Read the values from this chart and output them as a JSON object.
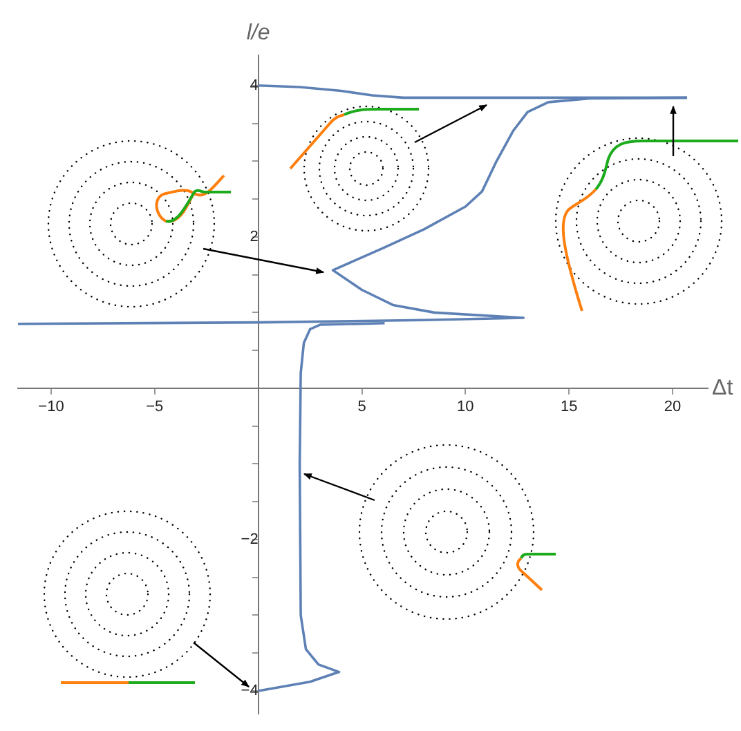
{
  "chart_data": {
    "type": "line",
    "xlabel": "Δt",
    "ylabel": "l/e",
    "xlim": [
      -11.6,
      21.7
    ],
    "ylim": [
      -4.3,
      4.4
    ],
    "xticks": [
      -10,
      -5,
      5,
      10,
      15,
      20
    ],
    "yticks": [
      -4,
      {
        "value": -3.5,
        "label": null
      },
      {
        "value": -3,
        "label": null
      },
      {
        "value": -2.5,
        "label": null
      },
      -2,
      {
        "value": -1.5,
        "label": null
      },
      {
        "value": -1,
        "label": null
      },
      {
        "value": -0.5,
        "label": null
      },
      {
        "value": 0.5,
        "label": null
      },
      {
        "value": 1,
        "label": null
      },
      {
        "value": 1.5,
        "label": null
      },
      2,
      {
        "value": 2.5,
        "label": null
      },
      {
        "value": 3,
        "label": null
      },
      {
        "value": 3.5,
        "label": null
      },
      4
    ],
    "grid": false,
    "legend": false,
    "marker": "none",
    "line_style": "solid",
    "series": [
      {
        "color": "#5e81b5",
        "x": [
          0,
          2,
          4,
          5.5,
          7,
          10,
          20.7
        ],
        "values": [
          4.0,
          3.98,
          3.93,
          3.87,
          3.84,
          3.84,
          3.84
        ]
      },
      {
        "color": "#5e81b5",
        "x": [
          20.7,
          16,
          14,
          13,
          12.3,
          11.5,
          10.8,
          10,
          8,
          6,
          3.6,
          5,
          6.5,
          8.5,
          12.8,
          8,
          0,
          -11.6
        ],
        "values": [
          3.84,
          3.83,
          3.78,
          3.65,
          3.4,
          3.0,
          2.6,
          2.4,
          2.1,
          1.85,
          1.56,
          1.3,
          1.1,
          1.0,
          0.93,
          0.9,
          0.87,
          0.85
        ]
      },
      {
        "color": "#5e81b5",
        "x": [
          6.1,
          3,
          2.5,
          2.2,
          2.05,
          2.0,
          2.05,
          2.3,
          2.9,
          3.9,
          2.5,
          0
        ],
        "values": [
          0.86,
          0.84,
          0.78,
          0.6,
          0.2,
          -1,
          -3.0,
          -3.45,
          -3.65,
          -3.75,
          -3.88,
          -4.0
        ]
      }
    ]
  }
}
